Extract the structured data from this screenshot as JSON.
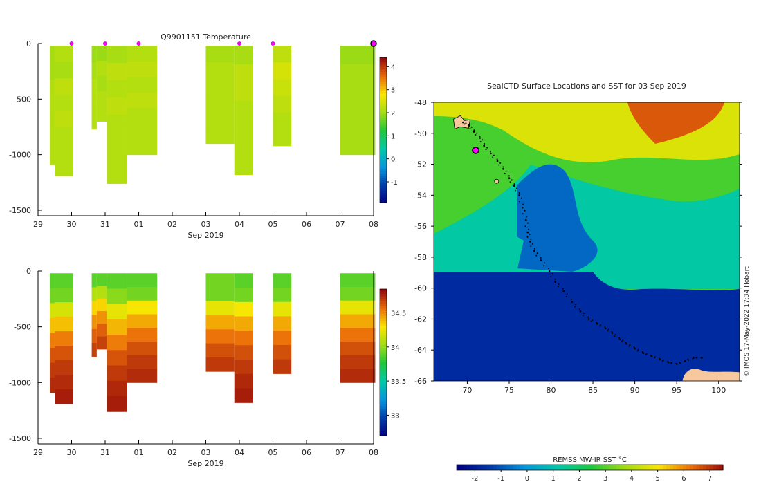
{
  "chart_data": [
    {
      "type": "heatmap",
      "title": "Q9901151  Temperature",
      "xlabel": "Sep 2019",
      "x_ticks": [
        "29",
        "30",
        "31",
        "01",
        "02",
        "03",
        "04",
        "05",
        "06",
        "07",
        "08"
      ],
      "y_ticks": [
        "0",
        "-500",
        "-1000",
        "-1500"
      ],
      "ylim": [
        -1550,
        0
      ],
      "colorbar": {
        "ticks": [
          "-1",
          "0",
          "1",
          "2",
          "3",
          "4"
        ],
        "range": [
          -1.9,
          4.4
        ]
      },
      "profile_markers": [
        "30",
        "31",
        "01",
        "04",
        "05"
      ],
      "current_marker": "08",
      "profiles": [
        {
          "start": 29.35,
          "end": 29.5,
          "depth": -1090,
          "values": [
            2.1,
            2.1,
            2.2,
            2.2,
            2.2,
            2.2,
            2.2
          ]
        },
        {
          "start": 29.5,
          "end": 30.05,
          "depth": -1190,
          "values": [
            2.2,
            2.1,
            2.3,
            2.2,
            2.3,
            2.2,
            2.2,
            2.2
          ]
        },
        {
          "start": 30.6,
          "end": 30.75,
          "depth": -770,
          "values": [
            2.0,
            2.1,
            2.2,
            2.2,
            2.2
          ]
        },
        {
          "start": 30.75,
          "end": 31.05,
          "depth": -700,
          "values": [
            2.0,
            2.2,
            2.1,
            2.2,
            2.2
          ]
        },
        {
          "start": 31.05,
          "end": 31.65,
          "depth": -1260,
          "values": [
            2.1,
            2.3,
            2.2,
            2.3,
            2.2,
            2.2,
            2.2,
            2.2
          ]
        },
        {
          "start": 31.65,
          "end": 32.55,
          "depth": -1000,
          "values": [
            2.2,
            2.3,
            2.2,
            2.3,
            2.2,
            2.2,
            2.2
          ]
        },
        {
          "start": 34.0,
          "end": 34.85,
          "depth": -900,
          "values": [
            2.1,
            2.2,
            2.2,
            2.2,
            2.2,
            2.2
          ]
        },
        {
          "start": 34.85,
          "end": 35.4,
          "depth": -1180,
          "values": [
            2.1,
            2.3,
            2.3,
            2.2,
            2.2,
            2.2,
            2.2
          ]
        },
        {
          "start": 36.0,
          "end": 36.55,
          "depth": -920,
          "values": [
            2.3,
            2.5,
            2.4,
            2.3,
            2.2,
            2.2
          ]
        },
        {
          "start": 38.0,
          "end": 39.05,
          "depth": -1000,
          "values": [
            2.0,
            2.1,
            2.1,
            2.1,
            2.1,
            2.1
          ]
        }
      ]
    },
    {
      "type": "heatmap",
      "title": "",
      "xlabel": "Sep 2019",
      "x_ticks": [
        "29",
        "30",
        "31",
        "01",
        "02",
        "03",
        "04",
        "05",
        "06",
        "07",
        "08"
      ],
      "y_ticks": [
        "0",
        "-500",
        "-1000",
        "-1500"
      ],
      "ylim": [
        -1550,
        0
      ],
      "colorbar": {
        "ticks": [
          "33",
          "33.5",
          "34",
          "34.5"
        ],
        "range": [
          32.7,
          34.85
        ]
      },
      "profiles": [
        {
          "start": 29.35,
          "end": 29.5,
          "depth": -1090,
          "values": [
            33.9,
            33.95,
            34.2,
            34.4,
            34.55,
            34.65,
            34.72,
            34.76
          ]
        },
        {
          "start": 29.5,
          "end": 30.05,
          "depth": -1190,
          "values": [
            33.9,
            33.95,
            34.2,
            34.4,
            34.55,
            34.65,
            34.72,
            34.76,
            34.8
          ]
        },
        {
          "start": 30.6,
          "end": 30.75,
          "depth": -770,
          "values": [
            33.9,
            34.1,
            34.35,
            34.5,
            34.62,
            34.7
          ]
        },
        {
          "start": 30.75,
          "end": 31.05,
          "depth": -700,
          "values": [
            33.9,
            34.1,
            34.35,
            34.5,
            34.62,
            34.7
          ]
        },
        {
          "start": 31.05,
          "end": 31.65,
          "depth": -1260,
          "values": [
            33.9,
            34.0,
            34.25,
            34.42,
            34.55,
            34.65,
            34.72,
            34.77,
            34.8
          ]
        },
        {
          "start": 31.65,
          "end": 32.55,
          "depth": -1000,
          "values": [
            33.9,
            33.95,
            34.3,
            34.45,
            34.57,
            34.66,
            34.72,
            34.76
          ]
        },
        {
          "start": 34.0,
          "end": 34.85,
          "depth": -900,
          "values": [
            33.95,
            33.95,
            34.25,
            34.45,
            34.57,
            34.66,
            34.72
          ]
        },
        {
          "start": 34.85,
          "end": 35.4,
          "depth": -1180,
          "values": [
            33.9,
            33.95,
            34.3,
            34.45,
            34.57,
            34.66,
            34.72,
            34.77,
            34.8
          ]
        },
        {
          "start": 36.0,
          "end": 36.55,
          "depth": -920,
          "values": [
            33.9,
            33.95,
            34.25,
            34.45,
            34.57,
            34.66,
            34.72
          ]
        },
        {
          "start": 38.0,
          "end": 39.05,
          "depth": -1000,
          "values": [
            33.9,
            33.95,
            34.25,
            34.45,
            34.57,
            34.66,
            34.72,
            34.76
          ]
        }
      ]
    },
    {
      "type": "heatmap",
      "title": "SealCTD Surface Locations and SST for 03 Sep 2019",
      "x_ticks": [
        "70",
        "75",
        "80",
        "85",
        "90",
        "95",
        "100"
      ],
      "y_ticks": [
        "-48",
        "-50",
        "-52",
        "-54",
        "-56",
        "-58",
        "-60",
        "-62",
        "-64",
        "-66"
      ],
      "xlim": [
        66,
        102.5
      ],
      "ylim": [
        -66,
        -48
      ],
      "colorbar": {
        "label": "REMSS MW-IR SST °C",
        "ticks": [
          "-2",
          "-1",
          "0",
          "1",
          "2",
          "3",
          "4",
          "5",
          "6",
          "7"
        ],
        "range": [
          -2.7,
          7.5
        ]
      },
      "sst_zones": [
        {
          "name": "warm-north",
          "sst": 4.5
        },
        {
          "name": "warmest-core",
          "sst": 6.5
        },
        {
          "name": "mid-band",
          "sst": 2.8
        },
        {
          "name": "cool-band",
          "sst": 1.2
        },
        {
          "name": "cold-tongue",
          "sst": -0.8
        },
        {
          "name": "ice-south",
          "sst": -1.8
        }
      ],
      "seal_track_lon": [
        69.5,
        70.2,
        70.8,
        71.5,
        72.0,
        72.8,
        73.6,
        74.3,
        75.0,
        75.6,
        76.2,
        76.6,
        77.0,
        77.2,
        77.5,
        78.0,
        78.8,
        79.8,
        80.5,
        81.5,
        82.5,
        83.5,
        84.5,
        85.5,
        86.5,
        87.3,
        88.2,
        89.0,
        90.0,
        91.0,
        92.0,
        93.0,
        94.0,
        95.0,
        96.0,
        97.0,
        98.0
      ],
      "seal_track_lat": [
        -49.3,
        -49.5,
        -49.9,
        -50.3,
        -50.8,
        -51.3,
        -51.8,
        -52.3,
        -52.9,
        -53.4,
        -54.0,
        -54.8,
        -55.6,
        -56.4,
        -57.0,
        -57.6,
        -58.2,
        -58.9,
        -59.6,
        -60.2,
        -60.9,
        -61.5,
        -62.0,
        -62.3,
        -62.6,
        -62.9,
        -63.3,
        -63.6,
        -63.9,
        -64.2,
        -64.4,
        -64.6,
        -64.8,
        -64.9,
        -64.7,
        -64.5,
        -64.5
      ],
      "current_position": {
        "lon": 71.0,
        "lat": -51.1
      },
      "land": [
        {
          "name": "kerguelen",
          "lon": 69.5,
          "lat": -49.4
        },
        {
          "name": "heard-island",
          "lon": 73.5,
          "lat": -53.1
        },
        {
          "name": "antarctica-coast",
          "lon": 97.5,
          "lat": -65.7
        }
      ]
    }
  ],
  "credit": "© IMOS 17-May-2022 17:34 Hobart"
}
